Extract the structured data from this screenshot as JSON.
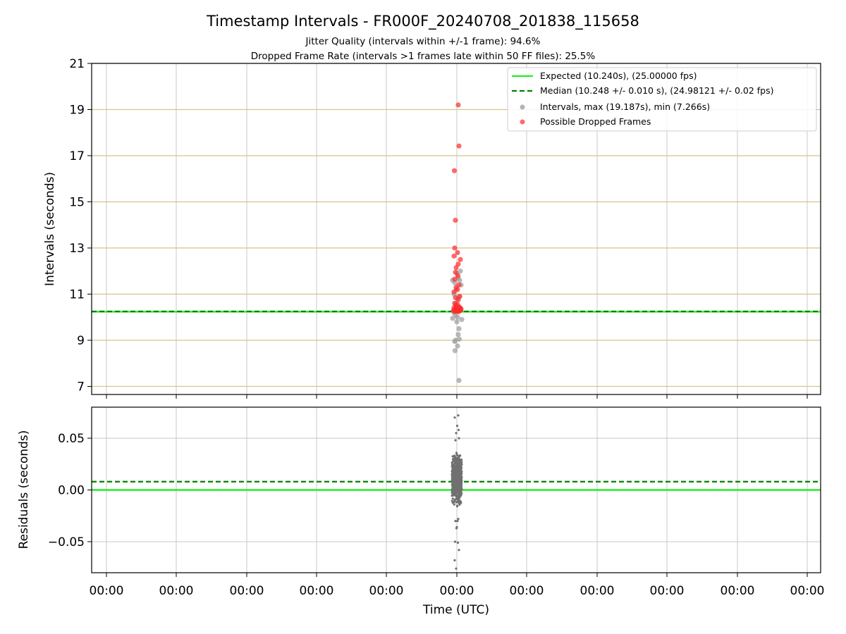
{
  "chart_data": {
    "type": "scatter",
    "title": "Timestamp Intervals - FR000F_20240708_201838_115658",
    "subtitle_lines": [
      "Jitter Quality (intervals within +/-1 frame): 94.6%",
      "Dropped Frame Rate (intervals >1 frames late within 50 FF files): 25.5%"
    ],
    "xlabel": "Time (UTC)",
    "x_tick_labels": [
      "00:00",
      "00:00",
      "00:00",
      "00:00",
      "00:00",
      "00:00",
      "00:00",
      "00:00",
      "00:00",
      "00:00",
      "00:00"
    ],
    "colors": {
      "expected": "#22ee22",
      "median": "#008000",
      "intervals": "#a0a0a0",
      "dropped": "#ff2a2a",
      "residuals": "#707070",
      "hgrid_top": "#d4c48c",
      "grid": "#c8c8c8"
    },
    "legend": {
      "placement": "upper-right",
      "entries": [
        {
          "label": "Expected (10.240s), (25.00000 fps)",
          "style": "line"
        },
        {
          "label": "Median (10.248 +/- 0.010 s), (24.98121 +/- 0.02 fps)",
          "style": "dashed"
        },
        {
          "label": "Intervals, max (19.187s), min (7.266s)",
          "style": "marker-gray"
        },
        {
          "label": "Possible Dropped Frames",
          "style": "marker-red"
        }
      ]
    },
    "top_panel": {
      "ylabel": "Intervals (seconds)",
      "ylim": [
        6.65,
        21
      ],
      "yticks": [
        7,
        9,
        11,
        13,
        15,
        17,
        19,
        21
      ],
      "expected": 10.24,
      "median": 10.248,
      "intervals": [
        [
          -0.4,
          10.2
        ],
        [
          0.3,
          10.3
        ],
        [
          -0.2,
          10.1
        ],
        [
          0.5,
          10.4
        ],
        [
          -0.5,
          10.3
        ],
        [
          0.1,
          10.0
        ],
        [
          -0.3,
          11.5
        ],
        [
          0.4,
          11.6
        ],
        [
          -0.1,
          11.2
        ],
        [
          0.2,
          11.7
        ],
        [
          -0.6,
          11.6
        ],
        [
          0.6,
          11.4
        ],
        [
          0.1,
          10.8
        ],
        [
          -0.2,
          10.6
        ],
        [
          0.4,
          10.9
        ],
        [
          -0.4,
          11.0
        ],
        [
          0.7,
          9.9
        ],
        [
          -0.6,
          9.95
        ],
        [
          0.0,
          9.8
        ],
        [
          0.3,
          9.5
        ],
        [
          0.2,
          9.25
        ],
        [
          0.35,
          9.05
        ],
        [
          -0.2,
          9.0
        ],
        [
          -0.3,
          8.95
        ],
        [
          0.1,
          8.75
        ],
        [
          -0.25,
          8.55
        ],
        [
          0.3,
          7.26
        ],
        [
          0.0,
          11.9
        ],
        [
          0.5,
          12.0
        ],
        [
          -0.1,
          10.5
        ]
      ],
      "dropped": [
        [
          0.2,
          19.2
        ],
        [
          0.3,
          17.42
        ],
        [
          -0.35,
          16.35
        ],
        [
          -0.2,
          14.2
        ],
        [
          -0.3,
          13.0
        ],
        [
          0.1,
          12.8
        ],
        [
          -0.4,
          12.65
        ],
        [
          0.5,
          12.5
        ],
        [
          0.2,
          12.3
        ],
        [
          -0.1,
          12.15
        ],
        [
          -0.2,
          11.95
        ],
        [
          0.15,
          11.8
        ],
        [
          -0.3,
          11.65
        ],
        [
          0.3,
          11.4
        ],
        [
          -0.1,
          11.3
        ],
        [
          0.1,
          11.2
        ],
        [
          -0.4,
          11.1
        ],
        [
          0.4,
          10.9
        ],
        [
          -0.2,
          10.85
        ],
        [
          0.2,
          10.75
        ],
        [
          -0.3,
          10.6
        ],
        [
          0.1,
          10.55
        ],
        [
          -0.1,
          10.5
        ],
        [
          0.3,
          10.45
        ],
        [
          -0.4,
          10.42
        ],
        [
          0.45,
          10.4
        ],
        [
          -0.05,
          10.38
        ],
        [
          0.25,
          10.36
        ],
        [
          -0.25,
          10.34
        ],
        [
          0.05,
          10.33
        ],
        [
          0.35,
          10.32
        ],
        [
          -0.35,
          10.31
        ],
        [
          0.15,
          10.3
        ],
        [
          -0.15,
          10.29
        ],
        [
          0.4,
          10.28
        ],
        [
          -0.45,
          10.27
        ],
        [
          0.0,
          10.26
        ],
        [
          0.2,
          10.25
        ],
        [
          -0.2,
          10.25
        ],
        [
          0.3,
          10.25
        ],
        [
          0.55,
          10.3
        ],
        [
          0.6,
          10.35
        ]
      ]
    },
    "bottom_panel": {
      "ylabel": "Residuals (seconds)",
      "ylim": [
        -0.08,
        0.08
      ],
      "yticks": [
        -0.05,
        0.0,
        0.05
      ],
      "ytick_labels": [
        "−0.05",
        "0.00",
        "0.05"
      ],
      "expected": 0.0,
      "median": 0.008,
      "residual_band": [
        -0.02,
        0.04
      ],
      "residual_count": 650,
      "residual_outliers": [
        [
          -0.3,
          0.07
        ],
        [
          0.2,
          0.072
        ],
        [
          0.05,
          0.062
        ],
        [
          0.25,
          0.058
        ],
        [
          -0.1,
          0.055
        ],
        [
          0.3,
          0.05
        ],
        [
          -0.2,
          0.048
        ],
        [
          -0.25,
          -0.05
        ],
        [
          0.15,
          -0.051
        ],
        [
          -0.3,
          -0.068
        ],
        [
          0.3,
          -0.058
        ],
        [
          -0.1,
          -0.076
        ],
        [
          0.0,
          -0.036
        ],
        [
          -0.05,
          -0.037
        ],
        [
          0.1,
          -0.03
        ],
        [
          -0.2,
          -0.03
        ],
        [
          0.2,
          -0.028
        ]
      ]
    }
  }
}
